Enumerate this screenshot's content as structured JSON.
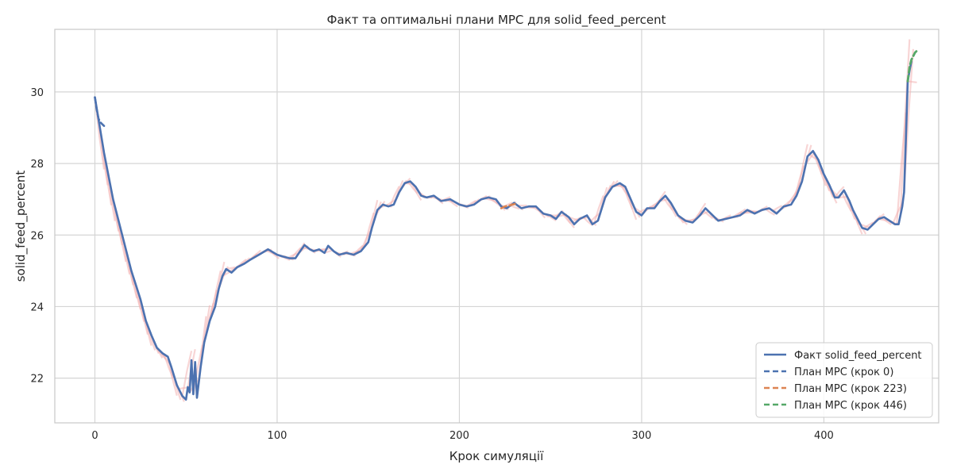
{
  "chart_data": {
    "type": "line",
    "title": "Факт та оптимальні плани MPC для solid_feed_percent",
    "xlabel": "Крок симуляції",
    "ylabel": "solid_feed_percent",
    "xlim": [
      -22,
      463
    ],
    "ylim": [
      20.75,
      31.75
    ],
    "xticks": [
      0,
      100,
      200,
      300,
      400
    ],
    "yticks": [
      22,
      24,
      26,
      28,
      30
    ],
    "grid": true,
    "legend_position": "lower-right",
    "colors": {
      "fact": "#4c72b0",
      "plan_0": "#4c72b0",
      "plan_223": "#dd8452",
      "plan_446": "#55a868",
      "background_plans": "#f2b3b3",
      "grid": "#d5d5d5",
      "spine": "#c8c8c8"
    },
    "legend": [
      {
        "label": "Факт solid_feed_percent",
        "style": "solid",
        "color": "#4c72b0"
      },
      {
        "label": "План MPC (крок 0)",
        "style": "dashed",
        "color": "#4c72b0"
      },
      {
        "label": "План MPC (крок 223)",
        "style": "dashed",
        "color": "#dd8452"
      },
      {
        "label": "План MPC (крок 446)",
        "style": "dashed",
        "color": "#55a868"
      }
    ],
    "series": [
      {
        "name": "Факт solid_feed_percent",
        "points": [
          [
            0,
            29.85
          ],
          [
            5,
            28.3
          ],
          [
            10,
            27.0
          ],
          [
            15,
            26.0
          ],
          [
            20,
            25.0
          ],
          [
            25,
            24.2
          ],
          [
            28,
            23.6
          ],
          [
            31,
            23.2
          ],
          [
            34,
            22.85
          ],
          [
            37,
            22.7
          ],
          [
            40,
            22.6
          ],
          [
            42,
            22.3
          ],
          [
            45,
            21.8
          ],
          [
            48,
            21.5
          ],
          [
            50,
            21.4
          ],
          [
            51,
            21.75
          ],
          [
            52,
            21.6
          ],
          [
            53,
            22.5
          ],
          [
            54,
            21.55
          ],
          [
            55,
            22.45
          ],
          [
            56,
            21.45
          ],
          [
            58,
            22.3
          ],
          [
            60,
            23.0
          ],
          [
            63,
            23.6
          ],
          [
            66,
            24.0
          ],
          [
            68,
            24.5
          ],
          [
            70,
            24.85
          ],
          [
            72,
            25.05
          ],
          [
            75,
            24.95
          ],
          [
            78,
            25.1
          ],
          [
            82,
            25.2
          ],
          [
            85,
            25.3
          ],
          [
            90,
            25.45
          ],
          [
            95,
            25.6
          ],
          [
            100,
            25.45
          ],
          [
            103,
            25.4
          ],
          [
            107,
            25.35
          ],
          [
            110,
            25.35
          ],
          [
            112,
            25.5
          ],
          [
            115,
            25.72
          ],
          [
            118,
            25.6
          ],
          [
            120,
            25.55
          ],
          [
            123,
            25.6
          ],
          [
            126,
            25.5
          ],
          [
            128,
            25.7
          ],
          [
            131,
            25.55
          ],
          [
            134,
            25.45
          ],
          [
            138,
            25.5
          ],
          [
            142,
            25.45
          ],
          [
            146,
            25.55
          ],
          [
            150,
            25.8
          ],
          [
            152,
            26.2
          ],
          [
            155,
            26.7
          ],
          [
            158,
            26.85
          ],
          [
            161,
            26.8
          ],
          [
            164,
            26.85
          ],
          [
            167,
            27.2
          ],
          [
            170,
            27.45
          ],
          [
            173,
            27.5
          ],
          [
            176,
            27.35
          ],
          [
            179,
            27.1
          ],
          [
            182,
            27.05
          ],
          [
            186,
            27.1
          ],
          [
            190,
            26.95
          ],
          [
            195,
            27.0
          ],
          [
            200,
            26.85
          ],
          [
            204,
            26.8
          ],
          [
            208,
            26.85
          ],
          [
            212,
            27.0
          ],
          [
            216,
            27.05
          ],
          [
            220,
            27.0
          ],
          [
            223,
            26.8
          ],
          [
            226,
            26.75
          ],
          [
            230,
            26.9
          ],
          [
            234,
            26.75
          ],
          [
            238,
            26.8
          ],
          [
            242,
            26.8
          ],
          [
            246,
            26.6
          ],
          [
            250,
            26.55
          ],
          [
            253,
            26.45
          ],
          [
            256,
            26.65
          ],
          [
            260,
            26.5
          ],
          [
            263,
            26.3
          ],
          [
            266,
            26.45
          ],
          [
            270,
            26.55
          ],
          [
            273,
            26.3
          ],
          [
            276,
            26.4
          ],
          [
            280,
            27.05
          ],
          [
            284,
            27.35
          ],
          [
            288,
            27.45
          ],
          [
            291,
            27.35
          ],
          [
            294,
            27.0
          ],
          [
            297,
            26.65
          ],
          [
            300,
            26.55
          ],
          [
            303,
            26.75
          ],
          [
            307,
            26.75
          ],
          [
            310,
            26.95
          ],
          [
            313,
            27.1
          ],
          [
            316,
            26.9
          ],
          [
            320,
            26.55
          ],
          [
            324,
            26.4
          ],
          [
            328,
            26.35
          ],
          [
            332,
            26.55
          ],
          [
            335,
            26.75
          ],
          [
            338,
            26.6
          ],
          [
            342,
            26.4
          ],
          [
            346,
            26.45
          ],
          [
            350,
            26.5
          ],
          [
            354,
            26.55
          ],
          [
            358,
            26.7
          ],
          [
            362,
            26.6
          ],
          [
            366,
            26.7
          ],
          [
            370,
            26.75
          ],
          [
            374,
            26.6
          ],
          [
            378,
            26.8
          ],
          [
            382,
            26.85
          ],
          [
            385,
            27.1
          ],
          [
            388,
            27.5
          ],
          [
            391,
            28.2
          ],
          [
            394,
            28.35
          ],
          [
            397,
            28.1
          ],
          [
            400,
            27.7
          ],
          [
            403,
            27.4
          ],
          [
            406,
            27.05
          ],
          [
            408,
            27.05
          ],
          [
            411,
            27.25
          ],
          [
            414,
            26.95
          ],
          [
            416,
            26.7
          ],
          [
            418,
            26.5
          ],
          [
            421,
            26.2
          ],
          [
            424,
            26.15
          ],
          [
            427,
            26.3
          ],
          [
            430,
            26.45
          ],
          [
            433,
            26.5
          ],
          [
            436,
            26.4
          ],
          [
            439,
            26.3
          ],
          [
            441,
            26.3
          ],
          [
            443,
            26.8
          ],
          [
            444,
            27.2
          ],
          [
            445,
            28.7
          ],
          [
            446,
            30.3
          ],
          [
            447,
            30.6
          ],
          [
            448,
            30.85
          ]
        ]
      },
      {
        "name": "План MPC (крок 0)",
        "points": [
          [
            0,
            29.85
          ],
          [
            1,
            29.5
          ],
          [
            2,
            29.25
          ],
          [
            3,
            29.15
          ],
          [
            4,
            29.1
          ],
          [
            5,
            29.05
          ]
        ]
      },
      {
        "name": "План MPC (крок 223)",
        "points": [
          [
            223,
            26.75
          ],
          [
            225,
            26.8
          ],
          [
            227,
            26.82
          ],
          [
            229,
            26.85
          ],
          [
            231,
            26.87
          ]
        ]
      },
      {
        "name": "План MPC (крок 446)",
        "points": [
          [
            446,
            30.3
          ],
          [
            447,
            30.7
          ],
          [
            448,
            30.9
          ],
          [
            449,
            31.0
          ],
          [
            450,
            31.1
          ],
          [
            451,
            31.15
          ],
          [
            452,
            31.18
          ]
        ]
      }
    ]
  }
}
